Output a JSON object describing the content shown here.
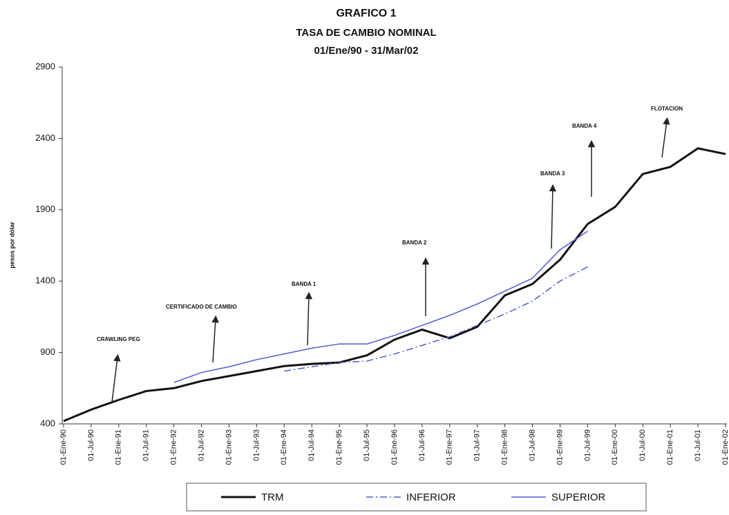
{
  "chart_data": {
    "type": "line",
    "title": "GRAFICO 1",
    "subtitle": [
      "TASA DE CAMBIO NOMINAL",
      "01/Ene/90 - 31/Mar/02"
    ],
    "y_label": "pesos por dólar",
    "categories": [
      "01-Ene-90",
      "01-Jul-90",
      "01-Ene-91",
      "01-Jul-91",
      "01-Ene-92",
      "01-Jul-92",
      "01-Ene-93",
      "01-Jul-93",
      "01-Ene-94",
      "01-Jul-94",
      "01-Ene-95",
      "01-Jul-95",
      "01-Ene-96",
      "01-Jul-96",
      "01-Ene-97",
      "01-Jul-97",
      "01-Ene-98",
      "01-Jul-98",
      "01-Ene-99",
      "01-Jul-99",
      "01-Ene-00",
      "01-Jul-00",
      "01-Ene-01",
      "01-Jul-01",
      "01-Ene-02"
    ],
    "series": [
      {
        "name": "TRM",
        "color": "#111111",
        "style": "solid",
        "values": [
          420,
          500,
          568,
          630,
          650,
          700,
          735,
          770,
          805,
          820,
          830,
          880,
          990,
          1060,
          1000,
          1080,
          1300,
          1380,
          1550,
          1800,
          1920,
          2150,
          2200,
          2330,
          2290
        ]
      },
      {
        "name": "INFERIOR",
        "color": "#4a5bd0",
        "style": "dashdot",
        "values": [
          null,
          null,
          null,
          null,
          null,
          null,
          null,
          null,
          770,
          800,
          830,
          840,
          890,
          950,
          1010,
          1090,
          1170,
          1260,
          1400,
          1500,
          null,
          null,
          null,
          null,
          null
        ]
      },
      {
        "name": "SUPERIOR",
        "color": "#4a5bd0",
        "style": "solid",
        "values": [
          null,
          null,
          null,
          null,
          690,
          760,
          800,
          850,
          890,
          930,
          960,
          960,
          1020,
          1090,
          1160,
          1240,
          1330,
          1420,
          1620,
          1750,
          null,
          null,
          null,
          null,
          null
        ]
      }
    ],
    "annotations": [
      "CRAWLING PEG",
      "CERTIFICADO DE CAMBIO",
      "BANDA 1",
      "BANDA 2",
      "BANDA 3",
      "BANDA 4",
      "FLOTACION"
    ],
    "ylim": [
      400,
      2900
    ],
    "yticks": [
      400,
      900,
      1400,
      1900,
      2400,
      2900
    ],
    "grid": false
  }
}
